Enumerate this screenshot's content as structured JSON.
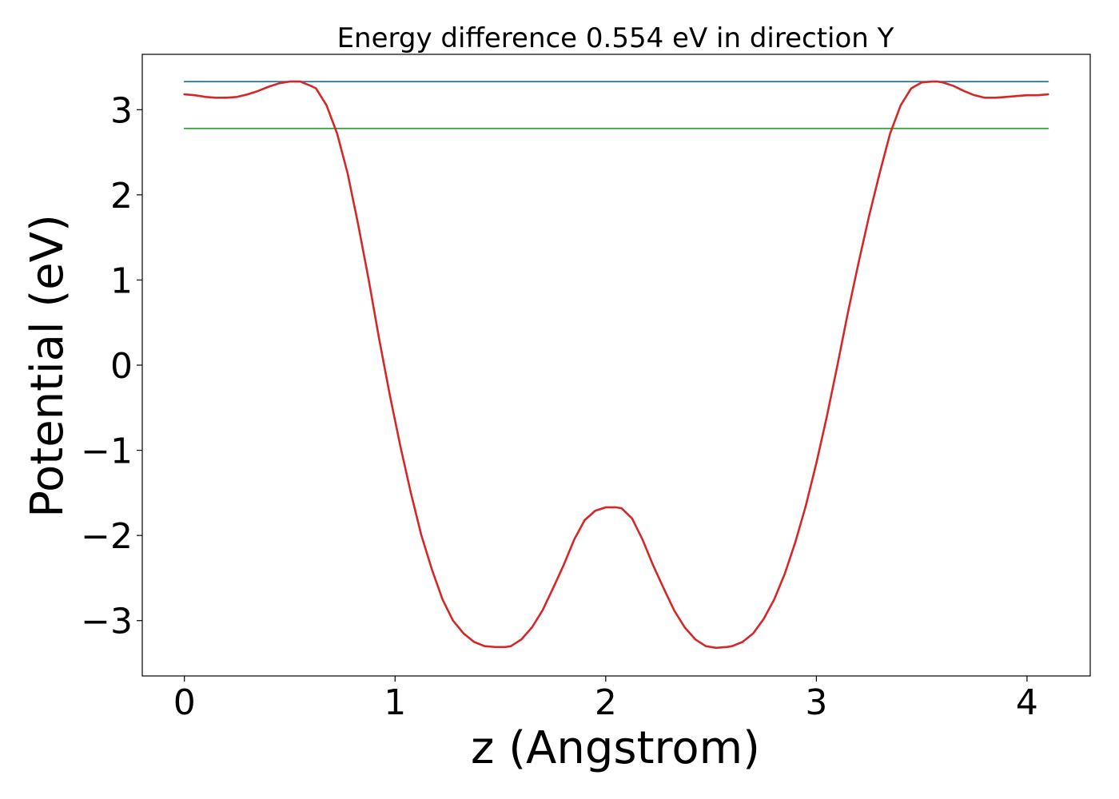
{
  "chart_data": {
    "type": "line",
    "title": "Energy difference 0.554 eV in direction Y",
    "xlabel": "z (Angstrom)",
    "ylabel": "Potential (eV)",
    "xlim": [
      -0.2,
      4.3
    ],
    "ylim": [
      -3.65,
      3.65
    ],
    "xticks": [
      0,
      1,
      2,
      3,
      4
    ],
    "xtick_labels": [
      "0",
      "1",
      "2",
      "3",
      "4"
    ],
    "yticks": [
      -3,
      -2,
      -1,
      0,
      1,
      2,
      3
    ],
    "ytick_labels": [
      "−3",
      "−2",
      "−1",
      "0",
      "1",
      "2",
      "3"
    ],
    "grid": false,
    "series": [
      {
        "color": "#1f77b4",
        "x": [
          0,
          4.1
        ],
        "y": [
          3.33,
          3.33
        ]
      },
      {
        "color": "#2ca02c",
        "x": [
          0,
          4.1
        ],
        "y": [
          2.78,
          2.78
        ]
      },
      {
        "color": "#d62728",
        "x": [
          0,
          0.05,
          0.1,
          0.15,
          0.2,
          0.25,
          0.3,
          0.35,
          0.4,
          0.45,
          0.5,
          0.55,
          0.6,
          0.625,
          0.675,
          0.725,
          0.775,
          0.825,
          0.875,
          0.925,
          0.975,
          1.025,
          1.075,
          1.125,
          1.175,
          1.225,
          1.275,
          1.325,
          1.375,
          1.425,
          1.475,
          1.525,
          1.55,
          1.6,
          1.65,
          1.7,
          1.75,
          1.8,
          1.85,
          1.9,
          1.95,
          2.0,
          2.05,
          2.075,
          2.125,
          2.175,
          2.225,
          2.275,
          2.325,
          2.375,
          2.425,
          2.475,
          2.525,
          2.575,
          2.6,
          2.65,
          2.7,
          2.75,
          2.8,
          2.85,
          2.9,
          2.95,
          3.0,
          3.05,
          3.1,
          3.15,
          3.2,
          3.25,
          3.3,
          3.35,
          3.4,
          3.45,
          3.5,
          3.55,
          3.575,
          3.6,
          3.65,
          3.7,
          3.75,
          3.8,
          3.85,
          3.9,
          3.95,
          4.0,
          4.05,
          4.1
        ],
        "y": [
          3.18,
          3.17,
          3.15,
          3.14,
          3.14,
          3.15,
          3.18,
          3.22,
          3.27,
          3.31,
          3.33,
          3.33,
          3.28,
          3.25,
          3.05,
          2.72,
          2.25,
          1.65,
          1.0,
          0.3,
          -0.35,
          -0.95,
          -1.5,
          -2.0,
          -2.4,
          -2.75,
          -3.0,
          -3.15,
          -3.25,
          -3.3,
          -3.31,
          -3.31,
          -3.3,
          -3.22,
          -3.08,
          -2.88,
          -2.62,
          -2.35,
          -2.05,
          -1.82,
          -1.71,
          -1.67,
          -1.67,
          -1.68,
          -1.8,
          -2.05,
          -2.35,
          -2.62,
          -2.88,
          -3.08,
          -3.22,
          -3.3,
          -3.32,
          -3.31,
          -3.3,
          -3.25,
          -3.15,
          -2.98,
          -2.75,
          -2.45,
          -2.08,
          -1.65,
          -1.15,
          -0.6,
          0.0,
          0.62,
          1.2,
          1.75,
          2.25,
          2.72,
          3.05,
          3.25,
          3.32,
          3.33,
          3.33,
          3.32,
          3.28,
          3.22,
          3.17,
          3.14,
          3.14,
          3.15,
          3.16,
          3.17,
          3.17,
          3.18
        ]
      }
    ]
  }
}
